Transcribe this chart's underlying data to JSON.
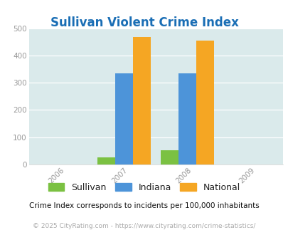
{
  "title": "Sullivan Violent Crime Index",
  "title_color": "#1a6eb5",
  "bar_data": {
    "2007": {
      "Sullivan": 27,
      "Indiana": 335,
      "National": 467
    },
    "2008": {
      "Sullivan": 52,
      "Indiana": 335,
      "National": 454
    }
  },
  "bar_colors": {
    "Sullivan": "#7bc142",
    "Indiana": "#4d94d9",
    "National": "#f5a623"
  },
  "ylim": [
    0,
    500
  ],
  "yticks": [
    0,
    100,
    200,
    300,
    400,
    500
  ],
  "plot_bg_color": "#daeaeb",
  "legend_labels": [
    "Sullivan",
    "Indiana",
    "National"
  ],
  "footnote1": "Crime Index corresponds to incidents per 100,000 inhabitants",
  "footnote2": "© 2025 CityRating.com - https://www.cityrating.com/crime-statistics/",
  "bar_width": 0.28,
  "xlabel_years": [
    2006,
    2007,
    2008,
    2009
  ],
  "xlim": [
    2005.5,
    2009.5
  ]
}
